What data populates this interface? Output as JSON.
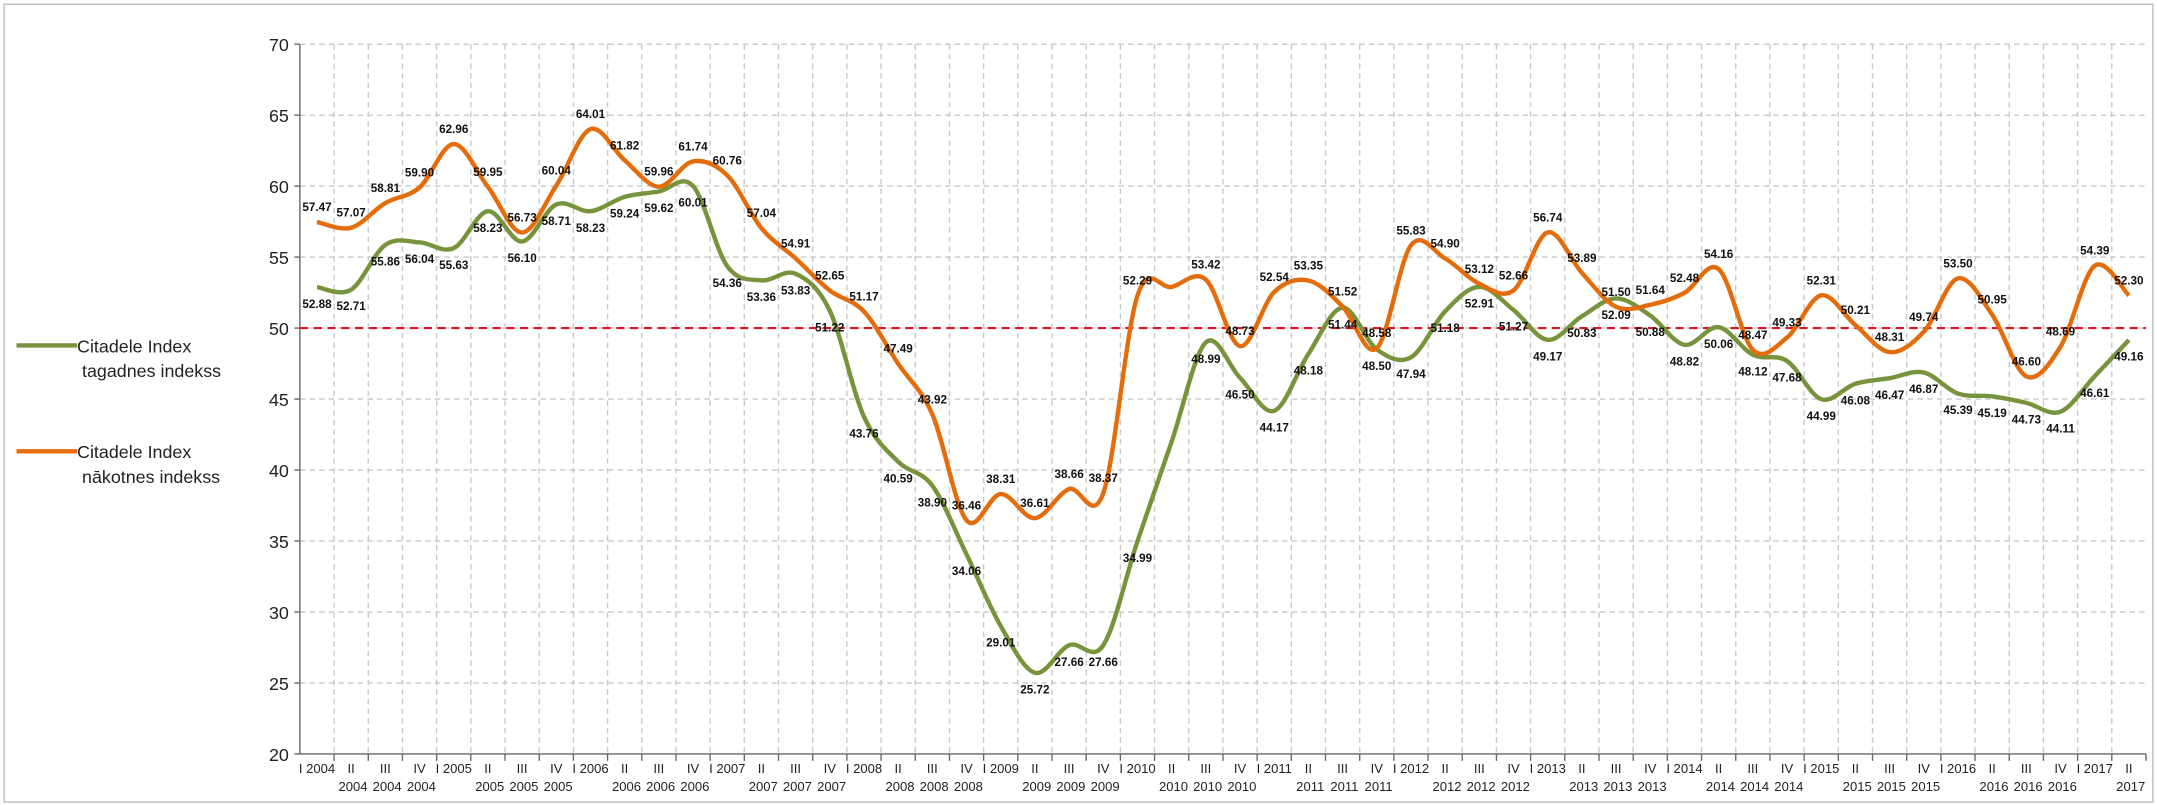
{
  "chart_data": {
    "type": "line",
    "categories": [
      "I 2004",
      "II 2004",
      "III 2004",
      "IV 2004",
      "I 2005",
      "II 2005",
      "III 2005",
      "IV 2005",
      "I 2006",
      "II 2006",
      "III 2006",
      "IV 2006",
      "I 2007",
      "II 2007",
      "III 2007",
      "IV 2007",
      "I 2008",
      "II 2008",
      "III 2008",
      "IV 2008",
      "I 2009",
      "II 2009",
      "III 2009",
      "IV 2009",
      "I 2010",
      "II 2010",
      "III 2010",
      "IV 2010",
      "I 2011",
      "II 2011",
      "III 2011",
      "IV 2011",
      "I 2012",
      "II 2012",
      "III 2012",
      "IV 2012",
      "I 2013",
      "II 2013",
      "III 2013",
      "IV 2013",
      "I 2014",
      "II 2014",
      "III 2014",
      "IV 2014",
      "I 2015",
      "II 2015",
      "III 2015",
      "IV 2015",
      "I 2016",
      "II 2016",
      "III 2016",
      "IV 2016",
      "I 2017",
      "II 2017"
    ],
    "series": [
      {
        "name": "Citadele Index tagadnes indekss",
        "color": "#77933c",
        "values": [
          52.88,
          52.71,
          55.86,
          56.04,
          55.63,
          58.23,
          56.1,
          58.71,
          58.23,
          59.24,
          59.62,
          60.01,
          54.36,
          53.36,
          53.83,
          51.22,
          43.76,
          40.59,
          38.9,
          34.06,
          29.01,
          25.72,
          27.66,
          27.66,
          34.99,
          42.0,
          48.99,
          46.5,
          44.17,
          48.18,
          51.44,
          48.5,
          47.94,
          51.18,
          52.91,
          51.27,
          49.17,
          50.83,
          52.09,
          50.88,
          48.82,
          50.06,
          48.12,
          47.68,
          44.99,
          46.08,
          46.47,
          46.87,
          45.39,
          45.19,
          44.73,
          44.11,
          46.61,
          49.16
        ],
        "value_labels": [
          "52.88",
          "52.71",
          "55.86",
          "56.04",
          "55.63",
          "58.23",
          "56.10",
          "58.71",
          "58.23",
          "59.24",
          "59.62",
          "60.01",
          "54.36",
          "53.36",
          "53.83",
          "51.22",
          "43.76",
          "40.59",
          "38.90",
          "34.06",
          "29.01",
          "25.72",
          "27.66",
          "27.66",
          "34.99",
          null,
          "48.99",
          "46.50",
          "44.17",
          "48.18",
          "51.44",
          "48.50",
          "47.94",
          "51.18",
          "52.91",
          "51.27",
          "49.17",
          "50.83",
          "52.09",
          "50.88",
          "48.82",
          "50.06",
          "48.12",
          "47.68",
          "44.99",
          "46.08",
          "46.47",
          "46.87",
          "45.39",
          "45.19",
          "44.73",
          "44.11",
          "46.61",
          "49.16"
        ]
      },
      {
        "name": "Citadele Index nākotnes indekss",
        "color": "#e46c0a",
        "values": [
          57.47,
          57.07,
          58.81,
          59.9,
          62.96,
          59.95,
          56.73,
          60.04,
          64.01,
          61.82,
          59.96,
          61.74,
          60.76,
          57.04,
          54.91,
          52.65,
          51.17,
          47.49,
          43.92,
          36.46,
          38.31,
          36.61,
          38.66,
          38.37,
          52.29,
          52.9,
          53.42,
          48.73,
          52.54,
          53.35,
          51.52,
          48.58,
          55.83,
          54.9,
          53.12,
          52.66,
          56.74,
          53.89,
          51.5,
          51.64,
          52.48,
          54.16,
          48.47,
          49.33,
          52.31,
          50.21,
          48.31,
          49.74,
          53.5,
          50.95,
          46.6,
          48.69,
          54.39,
          52.3
        ],
        "value_labels": [
          "57.47",
          "57.07",
          "58.81",
          "59.90",
          "62.96",
          "59.95",
          "56.73",
          "60.04",
          "64.01",
          "61.82",
          "59.96",
          "61.74",
          "60.76",
          "57.04",
          "54.91",
          "52.65",
          "51.17",
          "47.49",
          "43.92",
          "36.46",
          "38.31",
          "36.61",
          "38.66",
          "38.37",
          "52.29",
          null,
          "53.42",
          "48.73",
          "52.54",
          "53.35",
          "51.52",
          "48.58",
          "55.83",
          "54.90",
          "53.12",
          "52.66",
          "56.74",
          "53.89",
          "51.50",
          "51.64",
          "52.48",
          "54.16",
          "48.47",
          "49.33",
          "52.31",
          "50.21",
          "48.31",
          "49.74",
          "53.50",
          "50.95",
          "46.60",
          "48.69",
          "54.39",
          "52.30"
        ]
      }
    ],
    "ylim": [
      20,
      70
    ],
    "yticks": [
      20,
      25,
      30,
      35,
      40,
      45,
      50,
      55,
      60,
      65,
      70
    ],
    "reference_line": 50,
    "reference_color": "#e0141e",
    "grid": true,
    "legend": "left"
  }
}
